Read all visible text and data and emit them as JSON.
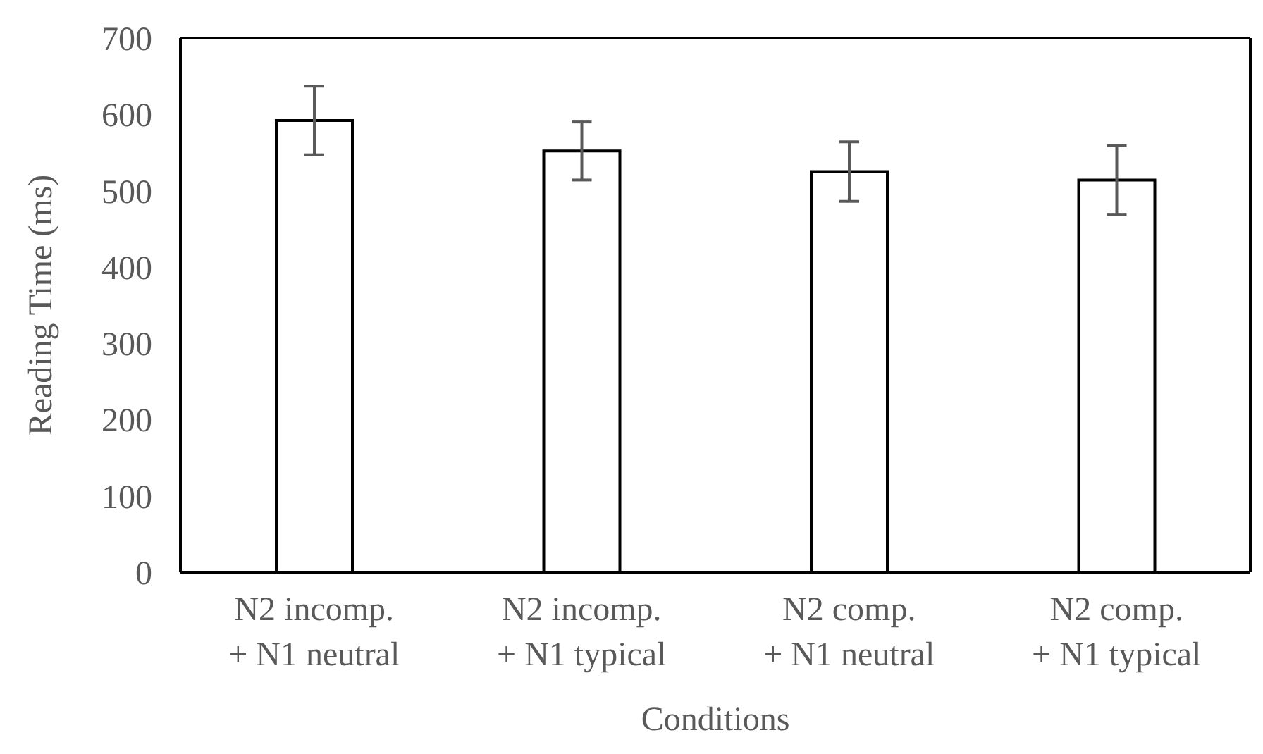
{
  "chart_data": {
    "type": "bar",
    "xlabel": "Conditions",
    "ylabel": "Reading Time (ms)",
    "categories": [
      "N2 incomp.\n+ N1 neutral",
      "N2 incomp.\n+ N1 typical",
      "N2 comp.\n+ N1 neutral",
      "N2 comp.\n+ N1 typical"
    ],
    "values": [
      592,
      552,
      525,
      514
    ],
    "errors": [
      45,
      38,
      39,
      45
    ],
    "color": "#ffffff",
    "ylim": [
      0,
      700
    ],
    "yticks": [
      0,
      100,
      200,
      300,
      400,
      500,
      600,
      700
    ],
    "grid": false,
    "legend": false
  }
}
